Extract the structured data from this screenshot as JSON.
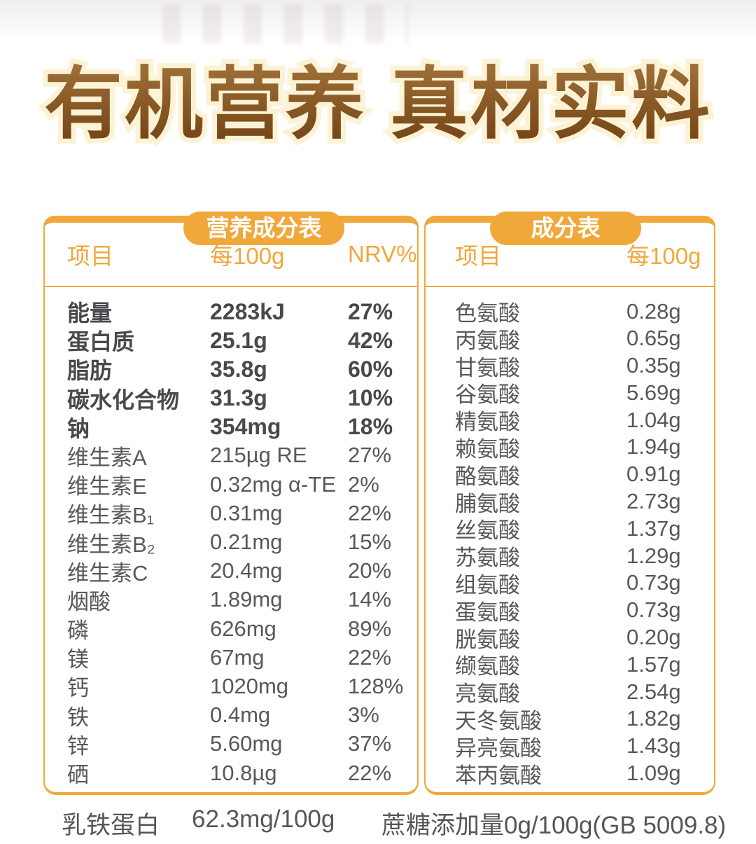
{
  "page": {
    "title": "有机营养 真材实料"
  },
  "colors": {
    "accent_gold": "#F0A83B",
    "row_text": "#57585B",
    "title_gradient_top": "#A5773E",
    "title_gradient_bottom": "#6E3D12",
    "title_glow": "#FCF3D6"
  },
  "nutrition_table": {
    "tab": "营养成分表",
    "columns": [
      "项目",
      "每100g",
      "NRV%"
    ],
    "rows": [
      {
        "name": "能量",
        "value": "2283kJ",
        "nrv": "27%",
        "bold": true
      },
      {
        "name": "蛋白质",
        "value": "25.1g",
        "nrv": "42%",
        "bold": true
      },
      {
        "name": "脂肪",
        "value": "35.8g",
        "nrv": "60%",
        "bold": true
      },
      {
        "name": "碳水化合物",
        "value": "31.3g",
        "nrv": "10%",
        "bold": true
      },
      {
        "name": "钠",
        "value": "354mg",
        "nrv": "18%",
        "bold": true
      },
      {
        "name": "维生素A",
        "value": "215µg RE",
        "nrv": "27%",
        "bold": false
      },
      {
        "name": "维生素E",
        "value": "0.32mg α-TE",
        "nrv": "2%",
        "bold": false
      },
      {
        "name": "维生素B₁",
        "value": "0.31mg",
        "nrv": "22%",
        "bold": false
      },
      {
        "name": "维生素B₂",
        "value": "0.21mg",
        "nrv": "15%",
        "bold": false
      },
      {
        "name": "维生素C",
        "value": "20.4mg",
        "nrv": "20%",
        "bold": false
      },
      {
        "name": "烟酸",
        "value": "1.89mg",
        "nrv": "14%",
        "bold": false
      },
      {
        "name": "磷",
        "value": "626mg",
        "nrv": "89%",
        "bold": false
      },
      {
        "name": "镁",
        "value": "67mg",
        "nrv": "22%",
        "bold": false
      },
      {
        "name": "钙",
        "value": "1020mg",
        "nrv": "128%",
        "bold": false
      },
      {
        "name": "铁",
        "value": "0.4mg",
        "nrv": "3%",
        "bold": false
      },
      {
        "name": "锌",
        "value": "5.60mg",
        "nrv": "37%",
        "bold": false
      },
      {
        "name": "硒",
        "value": "10.8µg",
        "nrv": "22%",
        "bold": false
      }
    ]
  },
  "ingredient_table": {
    "tab": "成分表",
    "columns": [
      "项目",
      "每100g"
    ],
    "rows": [
      {
        "name": "色氨酸",
        "value": "0.28g"
      },
      {
        "name": "丙氨酸",
        "value": "0.65g"
      },
      {
        "name": "甘氨酸",
        "value": "0.35g"
      },
      {
        "name": "谷氨酸",
        "value": "5.69g"
      },
      {
        "name": "精氨酸",
        "value": "1.04g"
      },
      {
        "name": "赖氨酸",
        "value": "1.94g"
      },
      {
        "name": "酪氨酸",
        "value": "0.91g"
      },
      {
        "name": "脯氨酸",
        "value": "2.73g"
      },
      {
        "name": "丝氨酸",
        "value": "1.37g"
      },
      {
        "name": "苏氨酸",
        "value": "1.29g"
      },
      {
        "name": "组氨酸",
        "value": "0.73g"
      },
      {
        "name": "蛋氨酸",
        "value": "0.73g"
      },
      {
        "name": "胱氨酸",
        "value": "0.20g"
      },
      {
        "name": "缬氨酸",
        "value": "1.57g"
      },
      {
        "name": "亮氨酸",
        "value": "2.54g"
      },
      {
        "name": "天冬氨酸",
        "value": "1.82g"
      },
      {
        "name": "异亮氨酸",
        "value": "1.43g"
      },
      {
        "name": "苯丙氨酸",
        "value": "1.09g"
      }
    ]
  },
  "footer": {
    "left_label": "乳铁蛋白",
    "left_value": "62.3mg/100g",
    "right_text": "蔗糖添加量0g/100g(GB 5009.8)"
  }
}
